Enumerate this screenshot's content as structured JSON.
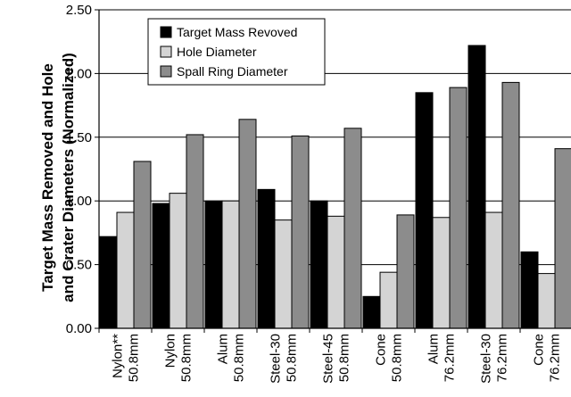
{
  "chart_data": {
    "type": "bar",
    "title": "",
    "ylabel_lines": [
      "Target Mass Removed and Hole",
      "and Crater Diameters (Normalized)"
    ],
    "xlabel": "",
    "ylim": [
      0,
      2.5
    ],
    "yticks": [
      "0.00",
      "0.50",
      "1.00",
      "1.50",
      "2.00",
      "2.50"
    ],
    "grid": true,
    "legend_position": "top-left",
    "categories": [
      {
        "line1": "Nylon**",
        "line2": "50.8mm"
      },
      {
        "line1": "Nylon",
        "line2": "50.8mm"
      },
      {
        "line1": "Alum",
        "line2": "50.8mm"
      },
      {
        "line1": "Steel-30",
        "line2": "50.8mm"
      },
      {
        "line1": "Steel-45",
        "line2": "50.8mm"
      },
      {
        "line1": "Cone",
        "line2": "50.8mm"
      },
      {
        "line1": "Alum",
        "line2": "76.2mm"
      },
      {
        "line1": "Steel-30",
        "line2": "76.2mm"
      },
      {
        "line1": "Cone",
        "line2": "76.2mm"
      }
    ],
    "series": [
      {
        "name": "Target Mass Revoved",
        "color": "#000000",
        "values": [
          0.72,
          0.98,
          1.0,
          1.09,
          1.0,
          0.25,
          1.85,
          2.22,
          0.6
        ]
      },
      {
        "name": "Hole Diameter",
        "color": "#d4d4d4",
        "values": [
          0.91,
          1.06,
          1.0,
          0.85,
          0.88,
          0.44,
          0.87,
          0.91,
          0.43
        ]
      },
      {
        "name": "Spall Ring Diameter",
        "color": "#8c8c8c",
        "values": [
          1.31,
          1.52,
          1.64,
          1.51,
          1.57,
          0.89,
          1.89,
          1.93,
          1.41
        ]
      }
    ]
  }
}
